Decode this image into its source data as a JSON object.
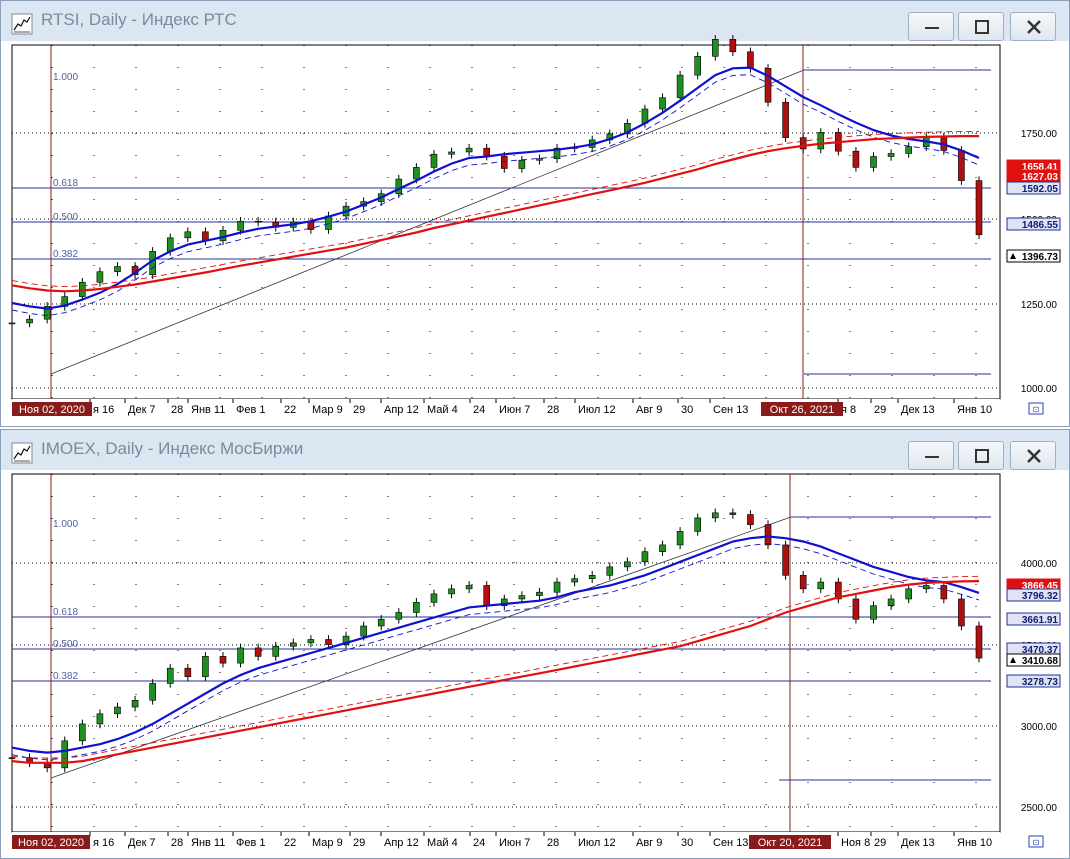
{
  "colors": {
    "ma_red": "#e01010",
    "ma_blue": "#1010d0",
    "fib_line": "#2030a0",
    "vline": "#8b1a1a",
    "bull": "#1f8f1f",
    "bear": "#b01010",
    "window_bg": "#dce6f2"
  },
  "windows": [
    {
      "title": "RTSI, Daily - Индекс РТС",
      "controls": {
        "minimize_icon": "minimize-icon",
        "maximize_icon": "maximize-icon",
        "close_icon": "close-icon"
      },
      "fib_labels": [
        "1.000",
        "0.618",
        "0.500",
        "0.382"
      ],
      "vline_labels": [
        "Ноя 02, 2020",
        "Окт 26, 2021"
      ],
      "x_ticks": [
        "я 16",
        "Дек 7",
        "28",
        "Янв 11",
        "Фев 1",
        "22",
        "Мар 9",
        "29",
        "Апр 12",
        "Май 4",
        "24",
        "Июн 7",
        "28",
        "Июл 12",
        "Авг 9",
        "30",
        "Сен 13",
        "я 8",
        "29",
        "Дек 13",
        "Янв 10"
      ],
      "price_labels": [
        "1000.00",
        "1250.00",
        "1500.00",
        "1750.00"
      ],
      "value_tags": [
        {
          "text": "1658.41",
          "style": "red"
        },
        {
          "text": "1627.03",
          "style": "red"
        },
        {
          "text": "1592.05",
          "style": "navy"
        },
        {
          "text": "1486.55",
          "style": "navy"
        },
        {
          "text": "1396.73",
          "style": "last"
        }
      ],
      "chart_data": {
        "type": "line",
        "ylim": [
          960,
          1900
        ],
        "series": [
          {
            "values": [
              1162,
              1172,
              1206,
              1232,
              1270,
              1298,
              1312,
              1290,
              1352,
              1388,
              1404,
              1380,
              1408,
              1432,
              1430,
              1416,
              1430,
              1410,
              1446,
              1472,
              1484,
              1505,
              1544,
              1575,
              1610,
              1616,
              1626,
              1605,
              1572,
              1594,
              1598,
              1626,
              1628,
              1648,
              1664,
              1692,
              1730,
              1760,
              1820,
              1870,
              1915,
              1882,
              1838,
              1748,
              1654,
              1624,
              1668,
              1618,
              1575,
              1604,
              1612,
              1630,
              1656,
              1620,
              1540,
              1396
            ]
          },
          {
            "values": [
              1215,
              1206,
              1200,
              1208,
              1224,
              1242,
              1265,
              1295,
              1328,
              1352,
              1370,
              1380,
              1390,
              1402,
              1412,
              1418,
              1424,
              1432,
              1444,
              1458,
              1476,
              1495,
              1518,
              1540,
              1564,
              1585,
              1600,
              1604,
              1610,
              1614,
              1618,
              1622,
              1628,
              1636,
              1650,
              1668,
              1692,
              1720,
              1752,
              1786,
              1820,
              1838,
              1840,
              1818,
              1790,
              1762,
              1740,
              1716,
              1694,
              1674,
              1660,
              1650,
              1644,
              1636,
              1620,
              1600
            ]
          },
          {
            "values": [
              1262,
              1254,
              1248,
              1246,
              1248,
              1252,
              1258,
              1264,
              1272,
              1280,
              1288,
              1296,
              1305,
              1314,
              1322,
              1330,
              1338,
              1346,
              1354,
              1362,
              1372,
              1382,
              1392,
              1402,
              1414,
              1424,
              1434,
              1444,
              1454,
              1464,
              1474,
              1484,
              1494,
              1504,
              1514,
              1524,
              1534,
              1546,
              1558,
              1570,
              1584,
              1596,
              1608,
              1618,
              1626,
              1632,
              1638,
              1642,
              1646,
              1650,
              1652,
              1654,
              1656,
              1657,
              1658,
              1658
            ]
          }
        ]
      }
    },
    {
      "title": "IMOEX, Daily - Индекс МосБиржи",
      "controls": {
        "minimize_icon": "minimize-icon",
        "maximize_icon": "maximize-icon",
        "close_icon": "close-icon"
      },
      "fib_labels": [
        "1.000",
        "0.618",
        "0.500",
        "0.382"
      ],
      "vline_labels": [
        "Ноя 02, 2020",
        "Окт 20, 2021"
      ],
      "x_ticks": [
        "я 16",
        "Дек 7",
        "28",
        "Янв 11",
        "Фев 1",
        "22",
        "Мар 9",
        "29",
        "Апр 12",
        "Май 4",
        "24",
        "Июн 7",
        "28",
        "Июл 12",
        "Авг 9",
        "30",
        "Сен 13",
        "Ноя 8",
        "29",
        "Дек 13",
        "Янв 10"
      ],
      "price_labels": [
        "2500.00",
        "3000.00",
        "3500.00",
        "4000.00"
      ],
      "value_tags": [
        {
          "text": "3866.45",
          "style": "red"
        },
        {
          "text": "3796.32",
          "style": "navy"
        },
        {
          "text": "3661.91",
          "style": "navy"
        },
        {
          "text": "3470.37",
          "style": "navy"
        },
        {
          "text": "3410.68",
          "style": "last"
        },
        {
          "text": "3278.73",
          "style": "navy"
        }
      ],
      "chart_data": {
        "type": "line",
        "ylim": [
          2380,
          4500
        ],
        "series": [
          {
            "values": [
              2820,
              2790,
              2760,
              2920,
              3020,
              3080,
              3120,
              3160,
              3260,
              3350,
              3300,
              3420,
              3380,
              3470,
              3420,
              3480,
              3500,
              3520,
              3490,
              3540,
              3600,
              3640,
              3680,
              3740,
              3790,
              3820,
              3840,
              3720,
              3760,
              3780,
              3800,
              3860,
              3880,
              3900,
              3950,
              3980,
              4040,
              4080,
              4160,
              4240,
              4270,
              4260,
              4200,
              4080,
              3900,
              3820,
              3860,
              3760,
              3640,
              3720,
              3760,
              3820,
              3840,
              3760,
              3600,
              3410
            ]
          },
          {
            "values": [
              2880,
              2860,
              2850,
              2860,
              2880,
              2900,
              2930,
              2970,
              3020,
              3080,
              3140,
              3200,
              3260,
              3310,
              3350,
              3380,
              3410,
              3440,
              3470,
              3500,
              3530,
              3560,
              3590,
              3620,
              3650,
              3680,
              3710,
              3720,
              3730,
              3740,
              3750,
              3770,
              3800,
              3820,
              3840,
              3870,
              3900,
              3940,
              3980,
              4020,
              4060,
              4100,
              4120,
              4130,
              4120,
              4100,
              4070,
              4030,
              3990,
              3950,
              3920,
              3890,
              3870,
              3860,
              3830,
              3796
            ]
          },
          {
            "values": [
              2800,
              2790,
              2790,
              2790,
              2800,
              2820,
              2840,
              2860,
              2880,
              2900,
              2920,
              2940,
              2960,
              2980,
              3000,
              3020,
              3040,
              3060,
              3080,
              3100,
              3120,
              3140,
              3160,
              3180,
              3200,
              3220,
              3240,
              3260,
              3280,
              3300,
              3320,
              3340,
              3360,
              3380,
              3400,
              3420,
              3440,
              3460,
              3480,
              3510,
              3540,
              3570,
              3600,
              3640,
              3680,
              3710,
              3740,
              3770,
              3790,
              3810,
              3830,
              3845,
              3855,
              3860,
              3864,
              3866
            ]
          }
        ]
      }
    }
  ]
}
